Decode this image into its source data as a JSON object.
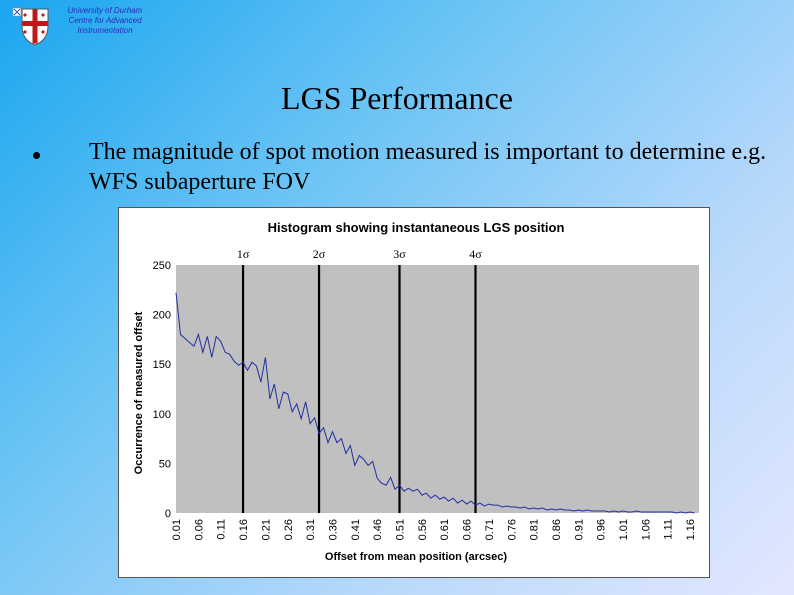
{
  "header": {
    "institution_lines": [
      "University of Durham",
      "Centre for Advanced",
      "Instrumentation"
    ]
  },
  "slide": {
    "title": "LGS Performance",
    "bullet": "The magnitude of spot motion measured is important to determine e.g. WFS subaperture FOV"
  },
  "colors": {
    "line": "#1f2fa0",
    "plot_bg": "#c0c0c0",
    "institution_text": "#2b2bb8"
  },
  "chart_data": {
    "type": "line",
    "title": "Histogram showing instantaneous LGS position",
    "xlabel": "Offset from mean position (arcsec)",
    "ylabel": "Occurrence of measured offset",
    "ylim": [
      0,
      250
    ],
    "yticks": [
      0,
      50,
      100,
      150,
      200,
      250
    ],
    "xtick_labels": [
      "0.01",
      "0.06",
      "0.11",
      "0.16",
      "0.21",
      "0.26",
      "0.31",
      "0.36",
      "0.41",
      "0.46",
      "0.51",
      "0.56",
      "0.61",
      "0.66",
      "0.71",
      "0.76",
      "0.81",
      "0.86",
      "0.91",
      "0.96",
      "1.01",
      "1.06",
      "1.11",
      "1.16"
    ],
    "grid": false,
    "legend": "none",
    "x": [
      0.01,
      0.02,
      0.03,
      0.04,
      0.05,
      0.06,
      0.07,
      0.08,
      0.09,
      0.1,
      0.11,
      0.12,
      0.13,
      0.14,
      0.15,
      0.16,
      0.17,
      0.18,
      0.19,
      0.2,
      0.21,
      0.22,
      0.23,
      0.24,
      0.25,
      0.26,
      0.27,
      0.28,
      0.29,
      0.3,
      0.31,
      0.32,
      0.33,
      0.34,
      0.35,
      0.36,
      0.37,
      0.38,
      0.39,
      0.4,
      0.41,
      0.42,
      0.43,
      0.44,
      0.45,
      0.46,
      0.47,
      0.48,
      0.49,
      0.5,
      0.51,
      0.52,
      0.53,
      0.54,
      0.55,
      0.56,
      0.57,
      0.58,
      0.59,
      0.6,
      0.61,
      0.62,
      0.63,
      0.64,
      0.65,
      0.66,
      0.67,
      0.68,
      0.69,
      0.7,
      0.71,
      0.72,
      0.73,
      0.74,
      0.75,
      0.76,
      0.77,
      0.78,
      0.79,
      0.8,
      0.81,
      0.82,
      0.83,
      0.84,
      0.85,
      0.86,
      0.87,
      0.88,
      0.89,
      0.9,
      0.91,
      0.92,
      0.93,
      0.94,
      0.95,
      0.96,
      0.97,
      0.98,
      0.99,
      1.0,
      1.01,
      1.02,
      1.03,
      1.04,
      1.05,
      1.06,
      1.07,
      1.08,
      1.09,
      1.1,
      1.11,
      1.12,
      1.13,
      1.14,
      1.15,
      1.16,
      1.17
    ],
    "values": [
      222,
      180,
      176,
      172,
      168,
      180,
      162,
      178,
      157,
      178,
      173,
      162,
      160,
      153,
      149,
      152,
      144,
      152,
      148,
      132,
      157,
      115,
      130,
      105,
      122,
      120,
      102,
      110,
      95,
      112,
      90,
      96,
      80,
      86,
      71,
      82,
      71,
      75,
      60,
      68,
      48,
      58,
      54,
      48,
      52,
      35,
      30,
      28,
      36,
      24,
      28,
      22,
      25,
      22,
      24,
      18,
      20,
      15,
      18,
      14,
      16,
      12,
      15,
      10,
      13,
      9,
      12,
      8,
      10,
      7,
      9,
      8,
      8,
      6,
      7,
      6,
      6,
      5,
      6,
      4,
      5,
      4,
      5,
      3,
      4,
      3,
      4,
      3,
      3,
      2,
      3,
      2,
      3,
      2,
      2,
      2,
      2,
      1,
      2,
      1,
      2,
      1,
      1,
      2,
      1,
      1,
      1,
      1,
      1,
      1,
      1,
      1,
      0,
      1,
      0,
      1,
      0
    ],
    "sigma_lines": [
      {
        "label": "1σ",
        "x": 0.16
      },
      {
        "label": "2σ",
        "x": 0.33
      },
      {
        "label": "3σ",
        "x": 0.51
      },
      {
        "label": "4σ",
        "x": 0.68
      }
    ]
  }
}
